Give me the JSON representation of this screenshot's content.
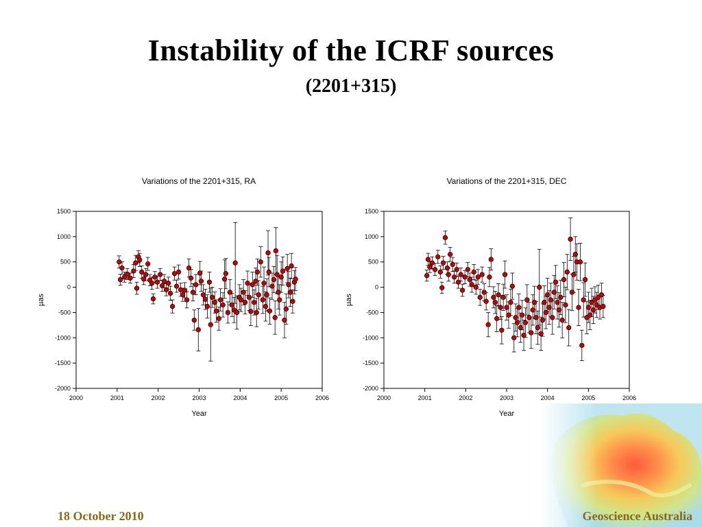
{
  "slide": {
    "title": "Instability of the ICRF sources",
    "subtitle": "(2201+315)",
    "date": "18 October 2010",
    "organization": "Geoscience Australia",
    "footer_color": "#8b6914"
  },
  "colors": {
    "marker_fill": "#cc0000",
    "marker_stroke": "#000000",
    "errorbar": "#000000"
  },
  "chart_data": [
    {
      "type": "scatter",
      "title": "Variations of the 2201+315, RA",
      "xlabel": "Year",
      "ylabel": "µas",
      "xlim": [
        2000,
        2006
      ],
      "ylim": [
        -2000,
        1500
      ],
      "xticks": [
        2000,
        2001,
        2002,
        2003,
        2004,
        2005,
        2006
      ],
      "yticks": [
        1500,
        1000,
        500,
        0,
        -500,
        -1000,
        -1500,
        -2000
      ],
      "grid": false,
      "error_bars": true,
      "points": [
        {
          "x": 2001.05,
          "y": 500,
          "err": 120
        },
        {
          "x": 2001.08,
          "y": 150,
          "err": 110
        },
        {
          "x": 2001.12,
          "y": 380,
          "err": 120
        },
        {
          "x": 2001.18,
          "y": 200,
          "err": 100
        },
        {
          "x": 2001.25,
          "y": 260,
          "err": 110
        },
        {
          "x": 2001.32,
          "y": 180,
          "err": 100
        },
        {
          "x": 2001.4,
          "y": 320,
          "err": 130
        },
        {
          "x": 2001.45,
          "y": 480,
          "err": 150
        },
        {
          "x": 2001.48,
          "y": -20,
          "err": 120
        },
        {
          "x": 2001.52,
          "y": 600,
          "err": 120
        },
        {
          "x": 2001.55,
          "y": 540,
          "err": 130
        },
        {
          "x": 2001.6,
          "y": 300,
          "err": 120
        },
        {
          "x": 2001.65,
          "y": 160,
          "err": 110
        },
        {
          "x": 2001.7,
          "y": 250,
          "err": 120
        },
        {
          "x": 2001.75,
          "y": 460,
          "err": 130
        },
        {
          "x": 2001.8,
          "y": 140,
          "err": 110
        },
        {
          "x": 2001.85,
          "y": 80,
          "err": 120
        },
        {
          "x": 2001.88,
          "y": -230,
          "err": 100
        },
        {
          "x": 2001.92,
          "y": 200,
          "err": 110
        },
        {
          "x": 2001.98,
          "y": 100,
          "err": 120
        },
        {
          "x": 2002.05,
          "y": 250,
          "err": 120
        },
        {
          "x": 2002.1,
          "y": 30,
          "err": 110
        },
        {
          "x": 2002.15,
          "y": 120,
          "err": 130
        },
        {
          "x": 2002.2,
          "y": -50,
          "err": 120
        },
        {
          "x": 2002.25,
          "y": 80,
          "err": 120
        },
        {
          "x": 2002.3,
          "y": -120,
          "err": 140
        },
        {
          "x": 2002.35,
          "y": -380,
          "err": 130
        },
        {
          "x": 2002.4,
          "y": 270,
          "err": 130
        },
        {
          "x": 2002.45,
          "y": 20,
          "err": 120
        },
        {
          "x": 2002.5,
          "y": 300,
          "err": 140
        },
        {
          "x": 2002.55,
          "y": -50,
          "err": 130
        },
        {
          "x": 2002.6,
          "y": -150,
          "err": 130
        },
        {
          "x": 2002.65,
          "y": -60,
          "err": 150
        },
        {
          "x": 2002.7,
          "y": -250,
          "err": 160
        },
        {
          "x": 2002.75,
          "y": 380,
          "err": 180
        },
        {
          "x": 2002.8,
          "y": 180,
          "err": 170
        },
        {
          "x": 2002.85,
          "y": -100,
          "err": 170
        },
        {
          "x": 2002.88,
          "y": -650,
          "err": 200
        },
        {
          "x": 2002.92,
          "y": 50,
          "err": 200
        },
        {
          "x": 2002.98,
          "y": -840,
          "err": 420
        },
        {
          "x": 2003.02,
          "y": 280,
          "err": 230
        },
        {
          "x": 2003.05,
          "y": 120,
          "err": 200
        },
        {
          "x": 2003.1,
          "y": -150,
          "err": 200
        },
        {
          "x": 2003.15,
          "y": -240,
          "err": 200
        },
        {
          "x": 2003.2,
          "y": -380,
          "err": 230
        },
        {
          "x": 2003.25,
          "y": 100,
          "err": 200
        },
        {
          "x": 2003.28,
          "y": -740,
          "err": 720
        },
        {
          "x": 2003.32,
          "y": -200,
          "err": 200
        },
        {
          "x": 2003.38,
          "y": -300,
          "err": 210
        },
        {
          "x": 2003.42,
          "y": -470,
          "err": 220
        },
        {
          "x": 2003.48,
          "y": -620,
          "err": 230
        },
        {
          "x": 2003.52,
          "y": -250,
          "err": 220
        },
        {
          "x": 2003.58,
          "y": -350,
          "err": 240
        },
        {
          "x": 2003.62,
          "y": 160,
          "err": 380
        },
        {
          "x": 2003.65,
          "y": 270,
          "err": 300
        },
        {
          "x": 2003.7,
          "y": -500,
          "err": 210
        },
        {
          "x": 2003.75,
          "y": -100,
          "err": 250
        },
        {
          "x": 2003.8,
          "y": -350,
          "err": 230
        },
        {
          "x": 2003.85,
          "y": -450,
          "err": 250
        },
        {
          "x": 2003.88,
          "y": 480,
          "err": 800
        },
        {
          "x": 2003.92,
          "y": -500,
          "err": 330
        },
        {
          "x": 2003.98,
          "y": -200,
          "err": 250
        },
        {
          "x": 2004.02,
          "y": -250,
          "err": 230
        },
        {
          "x": 2004.08,
          "y": -100,
          "err": 250
        },
        {
          "x": 2004.12,
          "y": -300,
          "err": 230
        },
        {
          "x": 2004.18,
          "y": 80,
          "err": 240
        },
        {
          "x": 2004.22,
          "y": -200,
          "err": 260
        },
        {
          "x": 2004.26,
          "y": -480,
          "err": 280
        },
        {
          "x": 2004.3,
          "y": 50,
          "err": 250
        },
        {
          "x": 2004.34,
          "y": -300,
          "err": 250
        },
        {
          "x": 2004.38,
          "y": 120,
          "err": 260
        },
        {
          "x": 2004.4,
          "y": -500,
          "err": 280
        },
        {
          "x": 2004.42,
          "y": 300,
          "err": 260
        },
        {
          "x": 2004.45,
          "y": -150,
          "err": 280
        },
        {
          "x": 2004.5,
          "y": 500,
          "err": 300
        },
        {
          "x": 2004.55,
          "y": -250,
          "err": 270
        },
        {
          "x": 2004.58,
          "y": 80,
          "err": 320
        },
        {
          "x": 2004.62,
          "y": -380,
          "err": 290
        },
        {
          "x": 2004.65,
          "y": -150,
          "err": 320
        },
        {
          "x": 2004.68,
          "y": 680,
          "err": 440
        },
        {
          "x": 2004.7,
          "y": 300,
          "err": 290
        },
        {
          "x": 2004.72,
          "y": -470,
          "err": 260
        },
        {
          "x": 2004.78,
          "y": 20,
          "err": 260
        },
        {
          "x": 2004.82,
          "y": 150,
          "err": 260
        },
        {
          "x": 2004.85,
          "y": -600,
          "err": 330
        },
        {
          "x": 2004.87,
          "y": 720,
          "err": 460
        },
        {
          "x": 2004.9,
          "y": 250,
          "err": 380
        },
        {
          "x": 2004.93,
          "y": -100,
          "err": 330
        },
        {
          "x": 2004.96,
          "y": -250,
          "err": 300
        },
        {
          "x": 2005.0,
          "y": 200,
          "err": 300
        },
        {
          "x": 2005.04,
          "y": 320,
          "err": 280
        },
        {
          "x": 2005.08,
          "y": -650,
          "err": 350
        },
        {
          "x": 2005.12,
          "y": -430,
          "err": 300
        },
        {
          "x": 2005.15,
          "y": 370,
          "err": 280
        },
        {
          "x": 2005.18,
          "y": 50,
          "err": 260
        },
        {
          "x": 2005.22,
          "y": -100,
          "err": 280
        },
        {
          "x": 2005.25,
          "y": 420,
          "err": 250
        },
        {
          "x": 2005.28,
          "y": -280,
          "err": 230
        },
        {
          "x": 2005.32,
          "y": 100,
          "err": 230
        },
        {
          "x": 2005.35,
          "y": 160,
          "err": 230
        }
      ]
    },
    {
      "type": "scatter",
      "title": "Variations of the 2201+315, DEC",
      "xlabel": "Year",
      "ylabel": "µas",
      "xlim": [
        2000,
        2006
      ],
      "ylim": [
        -2000,
        1500
      ],
      "xticks": [
        2000,
        2001,
        2002,
        2003,
        2004,
        2005,
        2006
      ],
      "yticks": [
        1500,
        1000,
        500,
        0,
        -500,
        -1000,
        -1500,
        -2000
      ],
      "grid": false,
      "error_bars": true,
      "points": [
        {
          "x": 2001.05,
          "y": 230,
          "err": 110
        },
        {
          "x": 2001.08,
          "y": 550,
          "err": 120
        },
        {
          "x": 2001.12,
          "y": 400,
          "err": 110
        },
        {
          "x": 2001.18,
          "y": 480,
          "err": 120
        },
        {
          "x": 2001.25,
          "y": 350,
          "err": 120
        },
        {
          "x": 2001.32,
          "y": 600,
          "err": 130
        },
        {
          "x": 2001.38,
          "y": 300,
          "err": 120
        },
        {
          "x": 2001.42,
          "y": -10,
          "err": 110
        },
        {
          "x": 2001.45,
          "y": 480,
          "err": 130
        },
        {
          "x": 2001.5,
          "y": 980,
          "err": 130
        },
        {
          "x": 2001.55,
          "y": 380,
          "err": 120
        },
        {
          "x": 2001.58,
          "y": 250,
          "err": 130
        },
        {
          "x": 2001.62,
          "y": 650,
          "err": 140
        },
        {
          "x": 2001.68,
          "y": 450,
          "err": 140
        },
        {
          "x": 2001.72,
          "y": 200,
          "err": 120
        },
        {
          "x": 2001.78,
          "y": 350,
          "err": 130
        },
        {
          "x": 2001.82,
          "y": 100,
          "err": 120
        },
        {
          "x": 2001.88,
          "y": 250,
          "err": 130
        },
        {
          "x": 2001.92,
          "y": -60,
          "err": 120
        },
        {
          "x": 2001.98,
          "y": 200,
          "err": 130
        },
        {
          "x": 2002.05,
          "y": 350,
          "err": 140
        },
        {
          "x": 2002.1,
          "y": 150,
          "err": 130
        },
        {
          "x": 2002.15,
          "y": 50,
          "err": 150
        },
        {
          "x": 2002.2,
          "y": 300,
          "err": 150
        },
        {
          "x": 2002.25,
          "y": 0,
          "err": 140
        },
        {
          "x": 2002.3,
          "y": 200,
          "err": 150
        },
        {
          "x": 2002.35,
          "y": -200,
          "err": 160
        },
        {
          "x": 2002.4,
          "y": 250,
          "err": 150
        },
        {
          "x": 2002.45,
          "y": -100,
          "err": 170
        },
        {
          "x": 2002.5,
          "y": -280,
          "err": 170
        },
        {
          "x": 2002.55,
          "y": -740,
          "err": 240
        },
        {
          "x": 2002.58,
          "y": 200,
          "err": 190
        },
        {
          "x": 2002.62,
          "y": 550,
          "err": 210
        },
        {
          "x": 2002.68,
          "y": -200,
          "err": 210
        },
        {
          "x": 2002.72,
          "y": -300,
          "err": 220
        },
        {
          "x": 2002.76,
          "y": -620,
          "err": 260
        },
        {
          "x": 2002.8,
          "y": -150,
          "err": 220
        },
        {
          "x": 2002.85,
          "y": -400,
          "err": 240
        },
        {
          "x": 2002.88,
          "y": -850,
          "err": 270
        },
        {
          "x": 2002.92,
          "y": -200,
          "err": 260
        },
        {
          "x": 2002.96,
          "y": 250,
          "err": 270
        },
        {
          "x": 2003.0,
          "y": -400,
          "err": 250
        },
        {
          "x": 2003.05,
          "y": -550,
          "err": 260
        },
        {
          "x": 2003.1,
          "y": -300,
          "err": 260
        },
        {
          "x": 2003.14,
          "y": 20,
          "err": 260
        },
        {
          "x": 2003.18,
          "y": -1000,
          "err": 280
        },
        {
          "x": 2003.22,
          "y": -600,
          "err": 270
        },
        {
          "x": 2003.26,
          "y": -700,
          "err": 280
        },
        {
          "x": 2003.3,
          "y": -400,
          "err": 270
        },
        {
          "x": 2003.34,
          "y": -800,
          "err": 290
        },
        {
          "x": 2003.38,
          "y": -550,
          "err": 290
        },
        {
          "x": 2003.42,
          "y": -950,
          "err": 300
        },
        {
          "x": 2003.46,
          "y": -700,
          "err": 290
        },
        {
          "x": 2003.5,
          "y": -250,
          "err": 300
        },
        {
          "x": 2003.55,
          "y": -600,
          "err": 300
        },
        {
          "x": 2003.6,
          "y": -900,
          "err": 310
        },
        {
          "x": 2003.64,
          "y": -450,
          "err": 300
        },
        {
          "x": 2003.68,
          "y": -300,
          "err": 320
        },
        {
          "x": 2003.72,
          "y": -600,
          "err": 320
        },
        {
          "x": 2003.76,
          "y": -800,
          "err": 330
        },
        {
          "x": 2003.8,
          "y": 0,
          "err": 750
        },
        {
          "x": 2003.84,
          "y": -920,
          "err": 330
        },
        {
          "x": 2003.88,
          "y": -650,
          "err": 320
        },
        {
          "x": 2003.92,
          "y": -300,
          "err": 330
        },
        {
          "x": 2003.96,
          "y": -500,
          "err": 320
        },
        {
          "x": 2004.0,
          "y": -150,
          "err": 330
        },
        {
          "x": 2004.04,
          "y": -400,
          "err": 330
        },
        {
          "x": 2004.08,
          "y": -250,
          "err": 330
        },
        {
          "x": 2004.12,
          "y": -600,
          "err": 330
        },
        {
          "x": 2004.16,
          "y": -100,
          "err": 330
        },
        {
          "x": 2004.2,
          "y": 100,
          "err": 330
        },
        {
          "x": 2004.24,
          "y": -300,
          "err": 330
        },
        {
          "x": 2004.28,
          "y": -450,
          "err": 340
        },
        {
          "x": 2004.32,
          "y": -200,
          "err": 340
        },
        {
          "x": 2004.36,
          "y": -650,
          "err": 350
        },
        {
          "x": 2004.4,
          "y": 150,
          "err": 340
        },
        {
          "x": 2004.44,
          "y": -350,
          "err": 350
        },
        {
          "x": 2004.48,
          "y": 300,
          "err": 350
        },
        {
          "x": 2004.52,
          "y": -800,
          "err": 360
        },
        {
          "x": 2004.56,
          "y": 950,
          "err": 420
        },
        {
          "x": 2004.6,
          "y": -100,
          "err": 360
        },
        {
          "x": 2004.64,
          "y": 250,
          "err": 360
        },
        {
          "x": 2004.68,
          "y": 650,
          "err": 350
        },
        {
          "x": 2004.72,
          "y": 500,
          "err": 360
        },
        {
          "x": 2004.76,
          "y": -400,
          "err": 360
        },
        {
          "x": 2004.8,
          "y": 500,
          "err": 370
        },
        {
          "x": 2004.84,
          "y": -1150,
          "err": 300
        },
        {
          "x": 2004.88,
          "y": -250,
          "err": 340
        },
        {
          "x": 2004.92,
          "y": 150,
          "err": 330
        },
        {
          "x": 2004.96,
          "y": -600,
          "err": 320
        },
        {
          "x": 2005.0,
          "y": -400,
          "err": 300
        },
        {
          "x": 2005.04,
          "y": -550,
          "err": 290
        },
        {
          "x": 2005.08,
          "y": -300,
          "err": 280
        },
        {
          "x": 2005.12,
          "y": -450,
          "err": 270
        },
        {
          "x": 2005.16,
          "y": -250,
          "err": 260
        },
        {
          "x": 2005.2,
          "y": -350,
          "err": 250
        },
        {
          "x": 2005.24,
          "y": -200,
          "err": 240
        },
        {
          "x": 2005.28,
          "y": -400,
          "err": 230
        },
        {
          "x": 2005.32,
          "y": -150,
          "err": 230
        },
        {
          "x": 2005.36,
          "y": -380,
          "err": 220
        }
      ]
    }
  ]
}
